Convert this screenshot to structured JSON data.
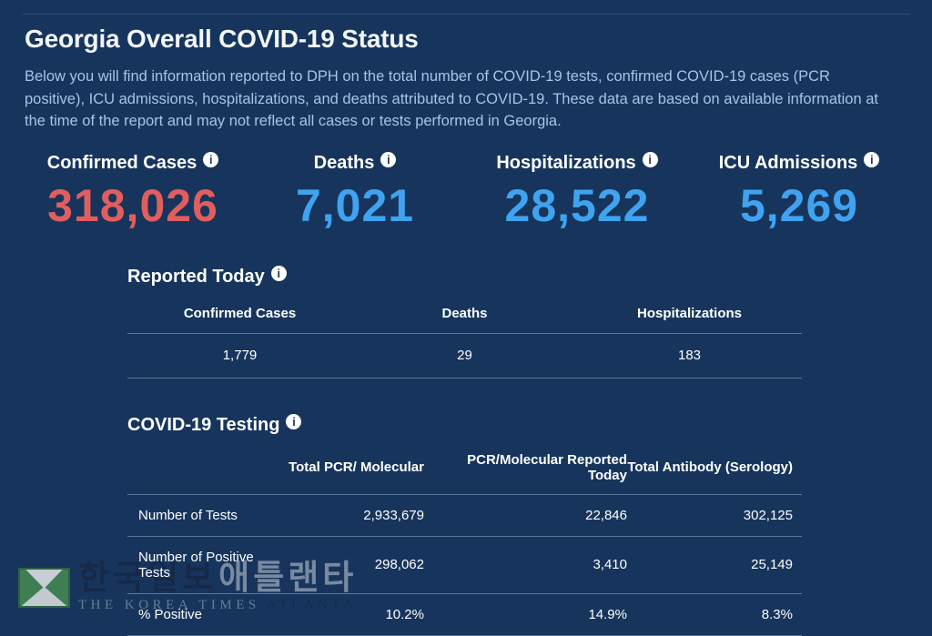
{
  "colors": {
    "background": "#17355c",
    "accent_red": "#e05e5e",
    "accent_blue": "#3fa3f0",
    "muted_text": "#a6c4e7",
    "divider": "rgba(173,200,230,0.45)"
  },
  "icons": {
    "info_glyph": "i"
  },
  "page": {
    "title": "Georgia Overall COVID-19 Status",
    "intro": "Below you will find information reported to DPH on the total number of COVID-19 tests, confirmed COVID-19 cases (PCR positive), ICU admissions, hospitalizations, and deaths attributed to COVID-19. These data are based on available information at the time of the report and may not reflect all cases or tests performed in Georgia."
  },
  "stats": [
    {
      "label": "Confirmed Cases",
      "value": "318,026",
      "color": "red"
    },
    {
      "label": "Deaths",
      "value": "7,021",
      "color": "blue"
    },
    {
      "label": "Hospitalizations",
      "value": "28,522",
      "color": "blue"
    },
    {
      "label": "ICU Admissions",
      "value": "5,269",
      "color": "blue"
    }
  ],
  "reported_today": {
    "heading": "Reported Today",
    "columns": [
      "Confirmed Cases",
      "Deaths",
      "Hospitalizations"
    ],
    "values": [
      "1,779",
      "29",
      "183"
    ]
  },
  "testing": {
    "heading": "COVID-19 Testing",
    "columns": [
      "Total PCR/ Molecular",
      "PCR/Molecular Reported Today",
      "Total Antibody (Serology)"
    ],
    "rows": [
      {
        "label": "Number of Tests",
        "values": [
          "2,933,679",
          "22,846",
          "302,125"
        ]
      },
      {
        "label": "Number of Positive Tests",
        "values": [
          "298,062",
          "3,410",
          "25,149"
        ]
      },
      {
        "label": "% Positive",
        "values": [
          "10.2%",
          "14.9%",
          "8.3%"
        ]
      }
    ]
  },
  "watermark": {
    "korean_primary": "한국일보",
    "korean_secondary": "애틀랜타",
    "english_primary": "THE KOREA TIMES",
    "english_secondary": "ATLANTA"
  }
}
